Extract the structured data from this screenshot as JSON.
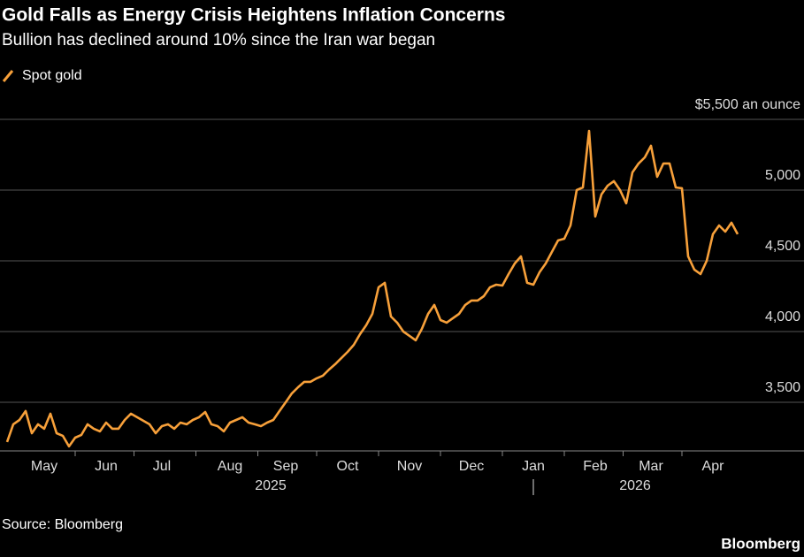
{
  "chart_data": {
    "type": "line",
    "title": "Gold Falls as Energy Crisis Heightens Inflation Concerns",
    "subtitle": "Bullion has declined around 10% since the Iran war began",
    "categories": [
      null,
      null,
      null,
      null,
      null,
      null,
      "May",
      null,
      null,
      null,
      null,
      null,
      null,
      null,
      null,
      null,
      "Jun",
      null,
      null,
      null,
      null,
      null,
      null,
      null,
      null,
      "Jul",
      null,
      null,
      null,
      null,
      null,
      null,
      null,
      null,
      null,
      null,
      "Aug",
      null,
      null,
      null,
      null,
      null,
      null,
      null,
      null,
      "Sep",
      null,
      null,
      null,
      null,
      null,
      null,
      null,
      null,
      null,
      "Oct",
      null,
      null,
      null,
      null,
      null,
      null,
      null,
      null,
      null,
      "Nov",
      null,
      null,
      null,
      null,
      null,
      null,
      null,
      null,
      null,
      "Dec",
      null,
      null,
      null,
      null,
      null,
      null,
      null,
      null,
      null,
      "Jan",
      null,
      null,
      null,
      null,
      null,
      null,
      null,
      null,
      null,
      "Feb",
      null,
      null,
      null,
      null,
      null,
      null,
      null,
      null,
      "Mar",
      null,
      null,
      null,
      null,
      null,
      null,
      null,
      null,
      null,
      "Apr",
      null,
      null,
      null,
      null
    ],
    "x_group_labels": [
      "2025",
      "2026"
    ],
    "series": [
      {
        "name": "Spot gold",
        "color": "#f7a03a",
        "values": [
          3219,
          3344,
          3375,
          3438,
          3281,
          3344,
          3313,
          3419,
          3281,
          3263,
          3188,
          3250,
          3269,
          3344,
          3313,
          3294,
          3356,
          3313,
          3313,
          3375,
          3419,
          3394,
          3369,
          3344,
          3281,
          3331,
          3344,
          3313,
          3356,
          3344,
          3375,
          3394,
          3431,
          3344,
          3331,
          3294,
          3356,
          3375,
          3394,
          3356,
          3344,
          3331,
          3356,
          3375,
          3438,
          3500,
          3563,
          3606,
          3644,
          3644,
          3669,
          3688,
          3731,
          3769,
          3813,
          3856,
          3906,
          3981,
          4044,
          4125,
          4313,
          4344,
          4106,
          4063,
          4000,
          3969,
          3938,
          4019,
          4125,
          4188,
          4081,
          4063,
          4094,
          4125,
          4188,
          4219,
          4219,
          4250,
          4313,
          4331,
          4325,
          4406,
          4481,
          4531,
          4344,
          4331,
          4419,
          4481,
          4563,
          4644,
          4656,
          4750,
          5000,
          5019,
          5419,
          4813,
          4969,
          5031,
          5063,
          5000,
          4906,
          5125,
          5188,
          5231,
          5313,
          5094,
          5188,
          5188,
          5019,
          5013,
          4531,
          4438,
          4406,
          4500,
          4688,
          4750,
          4706,
          4769,
          4688
        ]
      }
    ],
    "ylim": [
      3156,
      5625
    ],
    "yticks": [
      {
        "value": 3500,
        "label": "3,500"
      },
      {
        "value": 4000,
        "label": "4,000"
      },
      {
        "value": 4500,
        "label": "4,500"
      },
      {
        "value": 5000,
        "label": "5,000"
      },
      {
        "value": 5500,
        "label": "$5,500 an ounce"
      }
    ],
    "grid": true,
    "source": "Source: Bloomberg",
    "brand": "Bloomberg"
  }
}
